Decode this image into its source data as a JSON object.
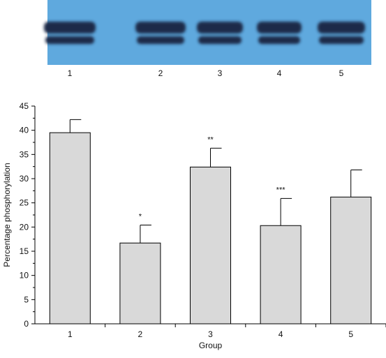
{
  "blot": {
    "lane_labels": [
      "1",
      "2",
      "3",
      "4",
      "5"
    ],
    "background_color": "#5fa9de",
    "band_color": "#1a2c4a"
  },
  "chart_data": {
    "type": "bar",
    "categories": [
      "1",
      "2",
      "3",
      "4",
      "5"
    ],
    "values": [
      39.5,
      16.7,
      32.4,
      20.3,
      26.2
    ],
    "errors": [
      2.7,
      3.7,
      3.9,
      5.6,
      5.6
    ],
    "significance": [
      "",
      "*",
      "**",
      "***",
      ""
    ],
    "xlabel": "Group",
    "ylabel": "Percentage phosphorylation",
    "ylim": [
      0,
      45
    ],
    "yticks": [
      0,
      5,
      10,
      15,
      20,
      25,
      30,
      35,
      40,
      45
    ],
    "bar_color": "#d9d9d9",
    "grid": false
  }
}
